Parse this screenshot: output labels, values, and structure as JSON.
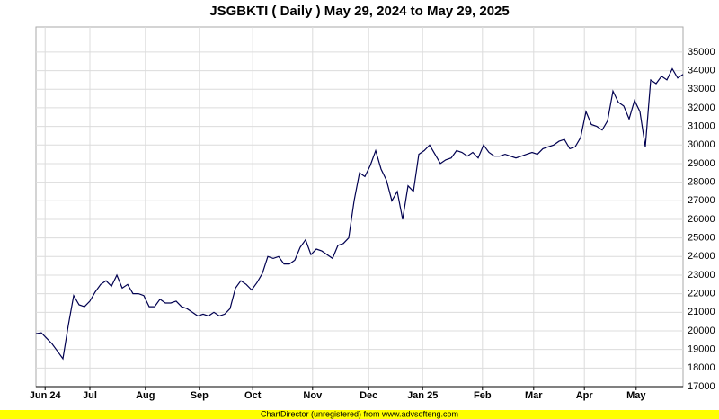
{
  "chart_data": {
    "type": "line",
    "title": "JSGBKTI ( Daily ) May 29, 2024 to May 29, 2025",
    "footer": "ChartDirector (unregistered) from www.advsofteng.com",
    "series": [
      {
        "color": "#000050",
        "values": [
          19850,
          19900,
          19600,
          19300,
          18900,
          18500,
          20300,
          21900,
          21400,
          21300,
          21600,
          22100,
          22500,
          22700,
          22400,
          23000,
          22300,
          22500,
          22000,
          22000,
          21900,
          21300,
          21300,
          21700,
          21500,
          21500,
          21600,
          21300,
          21200,
          21000,
          20800,
          20900,
          20800,
          21000,
          20800,
          20900,
          21200,
          22300,
          22700,
          22500,
          22200,
          22600,
          23100,
          24000,
          23900,
          24000,
          23600,
          23600,
          23800,
          24500,
          24900,
          24100,
          24400,
          24300,
          24100,
          23900,
          24600,
          24700,
          25000,
          27000,
          28500,
          28300,
          28900,
          29700,
          28700,
          28100,
          27000,
          27500,
          26000,
          27800,
          27500,
          29500,
          29700,
          30000,
          29500,
          29000,
          29200,
          29300,
          29700,
          29600,
          29400,
          29600,
          29300,
          30000,
          29600,
          29400,
          29400,
          29500,
          29400,
          29300,
          29400,
          29500,
          29600,
          29500,
          29800,
          29900,
          30000,
          30200,
          30300,
          29800,
          29900,
          30400,
          31800,
          31100,
          31000,
          30800,
          31300,
          32900,
          32300,
          32100,
          31400,
          32400,
          31800,
          29900,
          33500,
          33300,
          33700,
          33500,
          34100,
          33600,
          33800
        ]
      }
    ],
    "xlim": [
      0,
      120
    ],
    "xticks": [
      {
        "value": 1.7,
        "label": "Jun 24"
      },
      {
        "value": 10,
        "label": "Jul"
      },
      {
        "value": 20.3,
        "label": "Aug"
      },
      {
        "value": 30.3,
        "label": "Sep"
      },
      {
        "value": 40.2,
        "label": "Oct"
      },
      {
        "value": 51.3,
        "label": "Nov"
      },
      {
        "value": 61.7,
        "label": "Dec"
      },
      {
        "value": 71.7,
        "label": "Jan 25"
      },
      {
        "value": 82.8,
        "label": "Feb"
      },
      {
        "value": 92.3,
        "label": "Mar"
      },
      {
        "value": 101.7,
        "label": "Apr"
      },
      {
        "value": 111.3,
        "label": "May"
      }
    ],
    "ylim": [
      17000,
      36350
    ],
    "yticks": [
      17000,
      18000,
      19000,
      20000,
      21000,
      22000,
      23000,
      24000,
      25000,
      26000,
      27000,
      28000,
      29000,
      30000,
      31000,
      32000,
      33000,
      34000,
      35000
    ],
    "grid": true
  }
}
